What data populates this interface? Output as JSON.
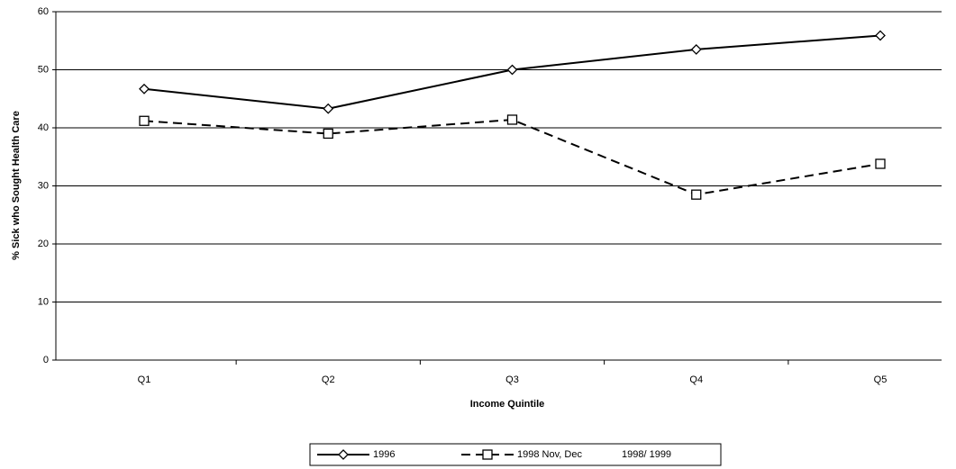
{
  "chart_data": {
    "type": "line",
    "x_label": "Income Quintile",
    "y_label": "% Sick who Sought Health Care",
    "categories": [
      "Q1",
      "Q2",
      "Q3",
      "Q4",
      "Q5"
    ],
    "series": [
      {
        "name": "1996",
        "color": "#000000",
        "values": [
          46.7,
          43.3,
          50,
          53.5,
          55.9
        ]
      },
      {
        "name": "1998 Nov, Dec",
        "color": "#000000",
        "values": [
          41.2,
          39,
          41.4,
          28.5,
          33.8
        ]
      },
      {
        "name": "1998/ 1999",
        "color": "#000000",
        "values": [
          null,
          null,
          null,
          null,
          null
        ]
      }
    ],
    "ylim": [
      0,
      60
    ],
    "yticks": [
      0,
      10,
      20,
      30,
      40,
      50,
      60
    ],
    "grid": true
  }
}
